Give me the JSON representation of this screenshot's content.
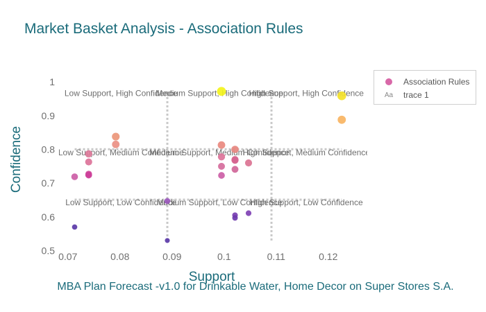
{
  "chart_data": {
    "type": "scatter",
    "title": "Market Basket Analysis - Association Rules",
    "subtitle": "MBA Plan Forecast -v1.0 for Drinkable Water, Home Decor on Super Stores S.A.",
    "xlabel": "Support",
    "ylabel": "Confidence",
    "xlim": [
      0.0683,
      0.1275
    ],
    "ylim": [
      0.4825,
      1.0375
    ],
    "x_ticks": [
      "0.07",
      "0.08",
      "0.09",
      "0.1",
      "0.11",
      "0.12"
    ],
    "y_ticks": [
      "0.5",
      "0.6",
      "0.7",
      "0.8",
      "0.9",
      "1"
    ],
    "grid": false,
    "legend_placement": "top-right",
    "legend": [
      "Association Rules",
      "trace 1"
    ],
    "series": [
      {
        "name": "Association Rules",
        "points": [
          {
            "x": 0.0713,
            "y": 0.719,
            "color": "#cc5ea6"
          },
          {
            "x": 0.0713,
            "y": 0.57,
            "color": "#5b3aa8"
          },
          {
            "x": 0.074,
            "y": 0.787,
            "color": "#de7a9a"
          },
          {
            "x": 0.074,
            "y": 0.763,
            "color": "#dc7399"
          },
          {
            "x": 0.074,
            "y": 0.727,
            "color": "#cf4b9b"
          },
          {
            "x": 0.074,
            "y": 0.724,
            "color": "#cc3f99"
          },
          {
            "x": 0.0792,
            "y": 0.838,
            "color": "#ec967a"
          },
          {
            "x": 0.0792,
            "y": 0.815,
            "color": "#ea9084"
          },
          {
            "x": 0.0891,
            "y": 0.647,
            "color": "#9b59bd"
          },
          {
            "x": 0.0891,
            "y": 0.53,
            "color": "#5b3aa8"
          },
          {
            "x": 0.0995,
            "y": 0.972,
            "color": "#f3f31c"
          },
          {
            "x": 0.0995,
            "y": 0.813,
            "color": "#e9897f"
          },
          {
            "x": 0.0995,
            "y": 0.778,
            "color": "#dc7399"
          },
          {
            "x": 0.0995,
            "y": 0.75,
            "color": "#d56d9c"
          },
          {
            "x": 0.0995,
            "y": 0.723,
            "color": "#cc5ea6"
          },
          {
            "x": 0.1021,
            "y": 0.8,
            "color": "#e6857f"
          },
          {
            "x": 0.1021,
            "y": 0.77,
            "color": "#dc6f8f"
          },
          {
            "x": 0.1021,
            "y": 0.768,
            "color": "#d56490"
          },
          {
            "x": 0.1021,
            "y": 0.741,
            "color": "#d06799"
          },
          {
            "x": 0.1021,
            "y": 0.605,
            "color": "#7a3fb2"
          },
          {
            "x": 0.1021,
            "y": 0.597,
            "color": "#6e3aad"
          },
          {
            "x": 0.1047,
            "y": 0.76,
            "color": "#db7392"
          },
          {
            "x": 0.1047,
            "y": 0.611,
            "color": "#7f41b4"
          },
          {
            "x": 0.1226,
            "y": 0.959,
            "color": "#f4e22a"
          },
          {
            "x": 0.1226,
            "y": 0.888,
            "color": "#f9b462"
          }
        ]
      },
      {
        "name": "trace 1",
        "segments": [
          {
            "x": [
              0.0891,
              0.0891
            ],
            "y": [
              0.53,
              0.972
            ]
          },
          {
            "x": [
              0.1091,
              0.1091
            ],
            "y": [
              0.53,
              0.972
            ]
          },
          {
            "x": [
              0.0713,
              0.1226
            ],
            "y": [
              0.8005,
              0.8005
            ]
          },
          {
            "x": [
              0.0713,
              0.1226
            ],
            "y": [
              0.651,
              0.651
            ]
          }
        ],
        "color": "#c8c8c8"
      }
    ],
    "annotations": [
      {
        "text": "Low Support, High Confidence",
        "x": 0.0802,
        "y": 0.958
      },
      {
        "text": "Medium Support, High Confidence",
        "x": 0.0991,
        "y": 0.958
      },
      {
        "text": "High Support, High Confidence",
        "x": 0.1158,
        "y": 0.958
      },
      {
        "text": "Low Support, Medium Confidence",
        "x": 0.0802,
        "y": 0.783
      },
      {
        "text": "Medium Support, Medium Confidence",
        "x": 0.0991,
        "y": 0.783
      },
      {
        "text": "High Support, Medium Confidence",
        "x": 0.1158,
        "y": 0.783
      },
      {
        "text": "Low Support, Low Confidence",
        "x": 0.0802,
        "y": 0.635
      },
      {
        "text": "Medium Support, Low Confidence",
        "x": 0.0991,
        "y": 0.635
      },
      {
        "text": "High Support, Low Confidence",
        "x": 0.1158,
        "y": 0.635
      }
    ]
  }
}
